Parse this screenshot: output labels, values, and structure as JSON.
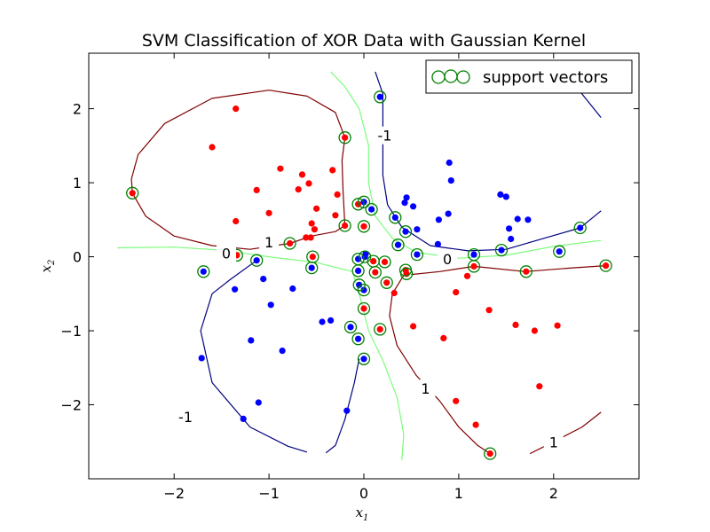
{
  "chart_data": {
    "type": "scatter",
    "title": "SVM Classification of XOR Data with Gaussian Kernel",
    "xlabel": {
      "main": "x",
      "sub": "1"
    },
    "ylabel": {
      "main": "x",
      "sub": "2"
    },
    "xlim": [
      -2.9,
      2.9
    ],
    "ylim": [
      -3.0,
      2.75
    ],
    "xticks": [
      -2,
      -1,
      0,
      1,
      2
    ],
    "yticks": [
      -2,
      -1,
      0,
      1,
      2
    ],
    "xtick_labels": [
      "−2",
      "−1",
      "0",
      "1",
      "2"
    ],
    "ytick_labels": [
      "−2",
      "−1",
      "0",
      "1",
      "2"
    ],
    "grid": false,
    "legend": {
      "label": "support vectors",
      "location": "top-right"
    },
    "colors": {
      "class_pos": "#ff0000",
      "class_neg": "#0000ff",
      "support_vector": "#008000",
      "contour_1": "#800000",
      "contour_0": "#7cfc7c",
      "contour_m1": "#000080"
    },
    "series": [
      {
        "name": "class +1",
        "points": [
          [
            -1.35,
            2.0
          ],
          [
            -1.6,
            1.48
          ],
          [
            -0.88,
            1.19
          ],
          [
            -0.65,
            1.11
          ],
          [
            -0.58,
            0.99
          ],
          [
            -0.33,
            1.17
          ],
          [
            -1.13,
            0.9
          ],
          [
            -0.69,
            0.91
          ],
          [
            -0.28,
            0.84
          ],
          [
            -1.0,
            0.59
          ],
          [
            -0.5,
            0.65
          ],
          [
            -0.3,
            0.56
          ],
          [
            -0.55,
            0.45
          ],
          [
            -0.52,
            0.37
          ],
          [
            -0.56,
            0.26
          ],
          [
            -0.61,
            0.26
          ],
          [
            -1.35,
            0.48
          ],
          [
            -0.2,
            1.61
          ],
          [
            -2.44,
            0.86
          ],
          [
            -0.2,
            0.42
          ],
          [
            -0.06,
            0.71
          ],
          [
            0.0,
            0.41
          ],
          [
            -1.34,
            0.02
          ],
          [
            -0.78,
            0.18
          ],
          [
            -0.54,
            0.0
          ],
          [
            0.1,
            -0.06
          ],
          [
            0.12,
            -0.21
          ],
          [
            0.22,
            -0.07
          ],
          [
            0.24,
            -0.35
          ],
          [
            0.32,
            -0.49
          ],
          [
            0.44,
            -0.18
          ],
          [
            0.45,
            -0.23
          ],
          [
            0.0,
            -0.7
          ],
          [
            0.17,
            -0.98
          ],
          [
            0.52,
            -0.94
          ],
          [
            0.84,
            -1.1
          ],
          [
            0.63,
            -1.71
          ],
          [
            0.97,
            -0.48
          ],
          [
            1.09,
            -0.26
          ],
          [
            1.16,
            -0.13
          ],
          [
            1.32,
            -0.72
          ],
          [
            1.6,
            -0.92
          ],
          [
            1.8,
            -1.0
          ],
          [
            2.04,
            -0.93
          ],
          [
            1.71,
            -0.2
          ],
          [
            1.85,
            -1.75
          ],
          [
            0.97,
            -1.95
          ],
          [
            1.18,
            -2.27
          ],
          [
            1.33,
            -2.66
          ],
          [
            2.55,
            -0.12
          ]
        ]
      },
      {
        "name": "class -1",
        "points": [
          [
            0.17,
            2.16
          ],
          [
            0.9,
            1.27
          ],
          [
            0.92,
            1.03
          ],
          [
            1.44,
            0.84
          ],
          [
            1.5,
            0.81
          ],
          [
            1.62,
            0.51
          ],
          [
            1.73,
            0.5
          ],
          [
            1.53,
            0.38
          ],
          [
            1.55,
            0.24
          ],
          [
            0.79,
            0.5
          ],
          [
            0.89,
            0.58
          ],
          [
            0.45,
            0.8
          ],
          [
            0.43,
            0.73
          ],
          [
            0.52,
            0.68
          ],
          [
            0.33,
            0.53
          ],
          [
            0.0,
            0.74
          ],
          [
            0.08,
            0.64
          ],
          [
            0.44,
            0.34
          ],
          [
            0.56,
            0.37
          ],
          [
            0.78,
            0.17
          ],
          [
            0.36,
            0.16
          ],
          [
            0.56,
            0.03
          ],
          [
            1.16,
            0.03
          ],
          [
            1.45,
            0.09
          ],
          [
            2.06,
            0.07
          ],
          [
            2.28,
            0.39
          ],
          [
            -0.06,
            -0.03
          ],
          [
            0.01,
            0.0
          ],
          [
            0.02,
            0.04
          ],
          [
            -0.06,
            -0.19
          ],
          [
            -0.05,
            -0.38
          ],
          [
            0.0,
            -0.45
          ],
          [
            -1.13,
            -0.05
          ],
          [
            -1.69,
            -0.2
          ],
          [
            -1.06,
            -0.3
          ],
          [
            -0.75,
            -0.43
          ],
          [
            -0.98,
            -0.65
          ],
          [
            -1.36,
            -0.44
          ],
          [
            -0.55,
            -0.15
          ],
          [
            -0.44,
            -0.88
          ],
          [
            -0.35,
            -0.86
          ],
          [
            -0.14,
            -0.95
          ],
          [
            -0.06,
            -1.11
          ],
          [
            0.0,
            -1.38
          ],
          [
            -1.19,
            -1.13
          ],
          [
            -0.86,
            -1.27
          ],
          [
            -1.71,
            -1.37
          ],
          [
            -1.11,
            -1.97
          ],
          [
            -1.27,
            -2.19
          ],
          [
            -0.18,
            -2.08
          ]
        ]
      }
    ],
    "support_vectors": [
      [
        0.17,
        2.16
      ],
      [
        -0.2,
        1.61
      ],
      [
        -2.44,
        0.86
      ],
      [
        -0.2,
        0.42
      ],
      [
        -0.06,
        0.71
      ],
      [
        0.0,
        0.74
      ],
      [
        0.08,
        0.64
      ],
      [
        0.0,
        0.41
      ],
      [
        0.33,
        0.53
      ],
      [
        0.44,
        0.34
      ],
      [
        0.36,
        0.16
      ],
      [
        0.56,
        0.03
      ],
      [
        1.16,
        0.03
      ],
      [
        1.45,
        0.09
      ],
      [
        2.06,
        0.07
      ],
      [
        2.28,
        0.39
      ],
      [
        1.16,
        -0.13
      ],
      [
        1.71,
        -0.2
      ],
      [
        2.55,
        -0.12
      ],
      [
        -1.34,
        0.02
      ],
      [
        -1.13,
        -0.05
      ],
      [
        -1.69,
        -0.2
      ],
      [
        -0.78,
        0.18
      ],
      [
        -0.54,
        0.0
      ],
      [
        -0.55,
        -0.15
      ],
      [
        -0.06,
        -0.03
      ],
      [
        0.01,
        0.0
      ],
      [
        0.1,
        -0.06
      ],
      [
        0.22,
        -0.07
      ],
      [
        0.12,
        -0.21
      ],
      [
        -0.06,
        -0.19
      ],
      [
        -0.05,
        -0.38
      ],
      [
        0.0,
        -0.45
      ],
      [
        0.44,
        -0.18
      ],
      [
        0.45,
        -0.23
      ],
      [
        0.24,
        -0.35
      ],
      [
        0.0,
        -0.7
      ],
      [
        0.17,
        -0.98
      ],
      [
        -0.14,
        -0.95
      ],
      [
        -0.06,
        -1.11
      ],
      [
        0.0,
        -1.38
      ],
      [
        1.33,
        -2.66
      ]
    ],
    "contours": [
      {
        "level": "1",
        "color_key": "contour_1",
        "paths": [
          [
            [
              -2.44,
              0.86
            ],
            [
              -2.45,
              1.05
            ],
            [
              -2.38,
              1.38
            ],
            [
              -2.1,
              1.8
            ],
            [
              -1.6,
              2.14
            ],
            [
              -1.0,
              2.25
            ],
            [
              -0.6,
              2.17
            ],
            [
              -0.3,
              1.95
            ],
            [
              -0.2,
              1.61
            ],
            [
              -0.23,
              1.3
            ],
            [
              -0.22,
              0.9
            ],
            [
              -0.2,
              0.42
            ],
            [
              -0.3,
              0.34
            ],
            [
              -0.55,
              0.28
            ],
            [
              -0.78,
              0.18
            ],
            [
              -1.2,
              0.1
            ],
            [
              -1.6,
              0.15
            ],
            [
              -2.0,
              0.28
            ],
            [
              -2.3,
              0.55
            ],
            [
              -2.44,
              0.86
            ]
          ],
          [
            [
              0.5,
              -0.24
            ],
            [
              0.8,
              -0.2
            ],
            [
              1.16,
              -0.13
            ],
            [
              1.7,
              -0.2
            ],
            [
              2.2,
              -0.15
            ],
            [
              2.55,
              -0.12
            ]
          ],
          [
            [
              0.42,
              -0.25
            ],
            [
              0.3,
              -0.5
            ],
            [
              0.27,
              -0.8
            ],
            [
              0.35,
              -1.2
            ],
            [
              0.55,
              -1.6
            ],
            [
              0.8,
              -1.95
            ],
            [
              1.0,
              -2.3
            ],
            [
              1.2,
              -2.55
            ],
            [
              1.33,
              -2.66
            ]
          ],
          [
            [
              1.75,
              -2.66
            ],
            [
              2.0,
              -2.5
            ],
            [
              2.3,
              -2.3
            ],
            [
              2.5,
              -2.1
            ]
          ]
        ],
        "labels": [
          {
            "text": "1",
            "at": [
              -1.0,
              0.2
            ]
          },
          {
            "text": "1",
            "at": [
              0.65,
              -1.78
            ]
          },
          {
            "text": "1",
            "at": [
              2.0,
              -2.5
            ]
          }
        ]
      },
      {
        "level": "0",
        "color_key": "contour_0",
        "paths": [
          [
            [
              -0.35,
              2.5
            ],
            [
              -0.2,
              2.3
            ],
            [
              -0.05,
              2.0
            ],
            [
              0.05,
              1.5
            ],
            [
              0.05,
              1.0
            ],
            [
              0.12,
              0.55
            ],
            [
              0.3,
              0.25
            ],
            [
              0.55,
              0.06
            ]
          ],
          [
            [
              0.55,
              0.06
            ],
            [
              1.0,
              -0.02
            ],
            [
              1.5,
              0.02
            ],
            [
              2.0,
              0.14
            ],
            [
              2.5,
              0.22
            ]
          ],
          [
            [
              -2.6,
              0.12
            ],
            [
              -2.0,
              0.13
            ],
            [
              -1.5,
              0.09
            ],
            [
              -1.0,
              0.0
            ],
            [
              -0.5,
              -0.08
            ],
            [
              -0.12,
              -0.2
            ],
            [
              -0.05,
              -0.5
            ],
            [
              0.05,
              -1.0
            ],
            [
              0.2,
              -1.4
            ],
            [
              0.35,
              -1.9
            ],
            [
              0.42,
              -2.4
            ],
            [
              0.4,
              -2.75
            ]
          ]
        ],
        "labels": [
          {
            "text": "0",
            "at": [
              -1.45,
              0.05
            ]
          },
          {
            "text": "0",
            "at": [
              0.88,
              -0.03
            ]
          }
        ]
      },
      {
        "level": "-1",
        "color_key": "contour_m1",
        "paths": [
          [
            [
              0.12,
              2.5
            ],
            [
              0.2,
              2.2
            ],
            [
              0.2,
              1.8
            ],
            [
              0.2,
              1.5
            ],
            [
              0.2,
              1.1
            ],
            [
              0.25,
              0.7
            ],
            [
              0.4,
              0.4
            ],
            [
              0.7,
              0.15
            ],
            [
              1.1,
              0.08
            ],
            [
              1.5,
              0.1
            ],
            [
              1.9,
              0.25
            ],
            [
              2.28,
              0.39
            ],
            [
              2.5,
              0.62
            ]
          ],
          [
            [
              2.1,
              2.5
            ],
            [
              2.28,
              2.23
            ],
            [
              2.5,
              1.88
            ]
          ],
          [
            [
              -1.13,
              -0.05
            ],
            [
              -1.4,
              -0.3
            ],
            [
              -1.6,
              -0.5
            ],
            [
              -1.72,
              -1.0
            ],
            [
              -1.6,
              -1.7
            ],
            [
              -1.2,
              -2.3
            ],
            [
              -0.8,
              -2.56
            ],
            [
              -0.6,
              -2.64
            ]
          ],
          [
            [
              -0.05,
              -1.38
            ],
            [
              -0.1,
              -1.7
            ],
            [
              -0.2,
              -2.2
            ],
            [
              -0.3,
              -2.55
            ],
            [
              -0.4,
              -2.65
            ]
          ]
        ],
        "labels": [
          {
            "text": "-1",
            "at": [
              0.22,
              1.64
            ]
          },
          {
            "text": "-1",
            "at": [
              -1.88,
              -2.16
            ]
          }
        ]
      }
    ]
  }
}
